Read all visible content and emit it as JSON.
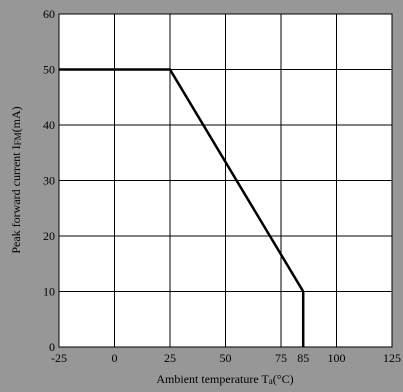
{
  "chart_data": {
    "type": "line",
    "title": "",
    "xlabel": "Ambient temperature T",
    "xlabel_sub": "a",
    "xlabel_unit": "(°C)",
    "ylabel": "Peak forward current I",
    "ylabel_sub": "FM",
    "ylabel_unit": "(mA)",
    "xlim": [
      -25,
      125
    ],
    "ylim": [
      0,
      60
    ],
    "x_ticks": [
      -25,
      0,
      25,
      50,
      75,
      85,
      100,
      125
    ],
    "x_tick_labels": [
      "-25",
      "0",
      "25",
      "50",
      "75",
      "85",
      "100",
      "125"
    ],
    "y_ticks": [
      0,
      10,
      20,
      30,
      40,
      50,
      60
    ],
    "y_tick_labels": [
      "0",
      "10",
      "20",
      "30",
      "40",
      "50",
      "60"
    ],
    "grid": true,
    "series": [
      {
        "x": [
          -25,
          25,
          85,
          85
        ],
        "y": [
          50,
          50,
          10,
          0
        ]
      }
    ],
    "colors": {
      "background": "#979797",
      "plot_background": "#ffffff",
      "grid": "#000000",
      "line": "#000000"
    }
  }
}
